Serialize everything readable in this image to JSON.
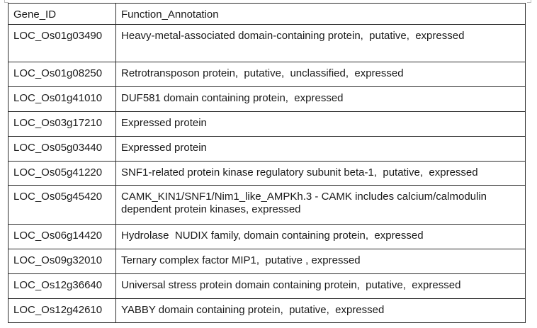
{
  "table": {
    "headers": [
      "Gene_ID",
      "Function_Annotation"
    ],
    "rows": [
      {
        "gene_id": "LOC_Os01g03490",
        "annotation": "Heavy-metal-associated domain-containing protein,  putative,  expressed"
      },
      {
        "gene_id": "LOC_Os01g08250",
        "annotation": "Retrotransposon protein,  putative,  unclassified,  expressed"
      },
      {
        "gene_id": "LOC_Os01g41010",
        "annotation": "DUF581 domain containing protein,  expressed"
      },
      {
        "gene_id": "LOC_Os03g17210",
        "annotation": "Expressed protein"
      },
      {
        "gene_id": "LOC_Os05g03440",
        "annotation": "Expressed protein"
      },
      {
        "gene_id": "LOC_Os05g41220",
        "annotation": "SNF1-related protein kinase regulatory subunit beta-1,  putative,  expressed"
      },
      {
        "gene_id": "LOC_Os05g45420",
        "annotation": "CAMK_KIN1/SNF1/Nim1_like_AMPKh.3 - CAMK includes calcium/calmodulin dependent protein kinases, expressed"
      },
      {
        "gene_id": "LOC_Os06g14420",
        "annotation": "Hydrolase  NUDIX family, domain containing protein,  expressed"
      },
      {
        "gene_id": "LOC_Os09g32010",
        "annotation": "Ternary complex factor MIP1,  putative , expressed"
      },
      {
        "gene_id": "LOC_Os12g36640",
        "annotation": "Universal stress protein domain containing protein,  putative,  expressed"
      },
      {
        "gene_id": "LOC_Os12g42610",
        "annotation": "YABBY domain containing protein,  putative,  expressed"
      }
    ]
  }
}
